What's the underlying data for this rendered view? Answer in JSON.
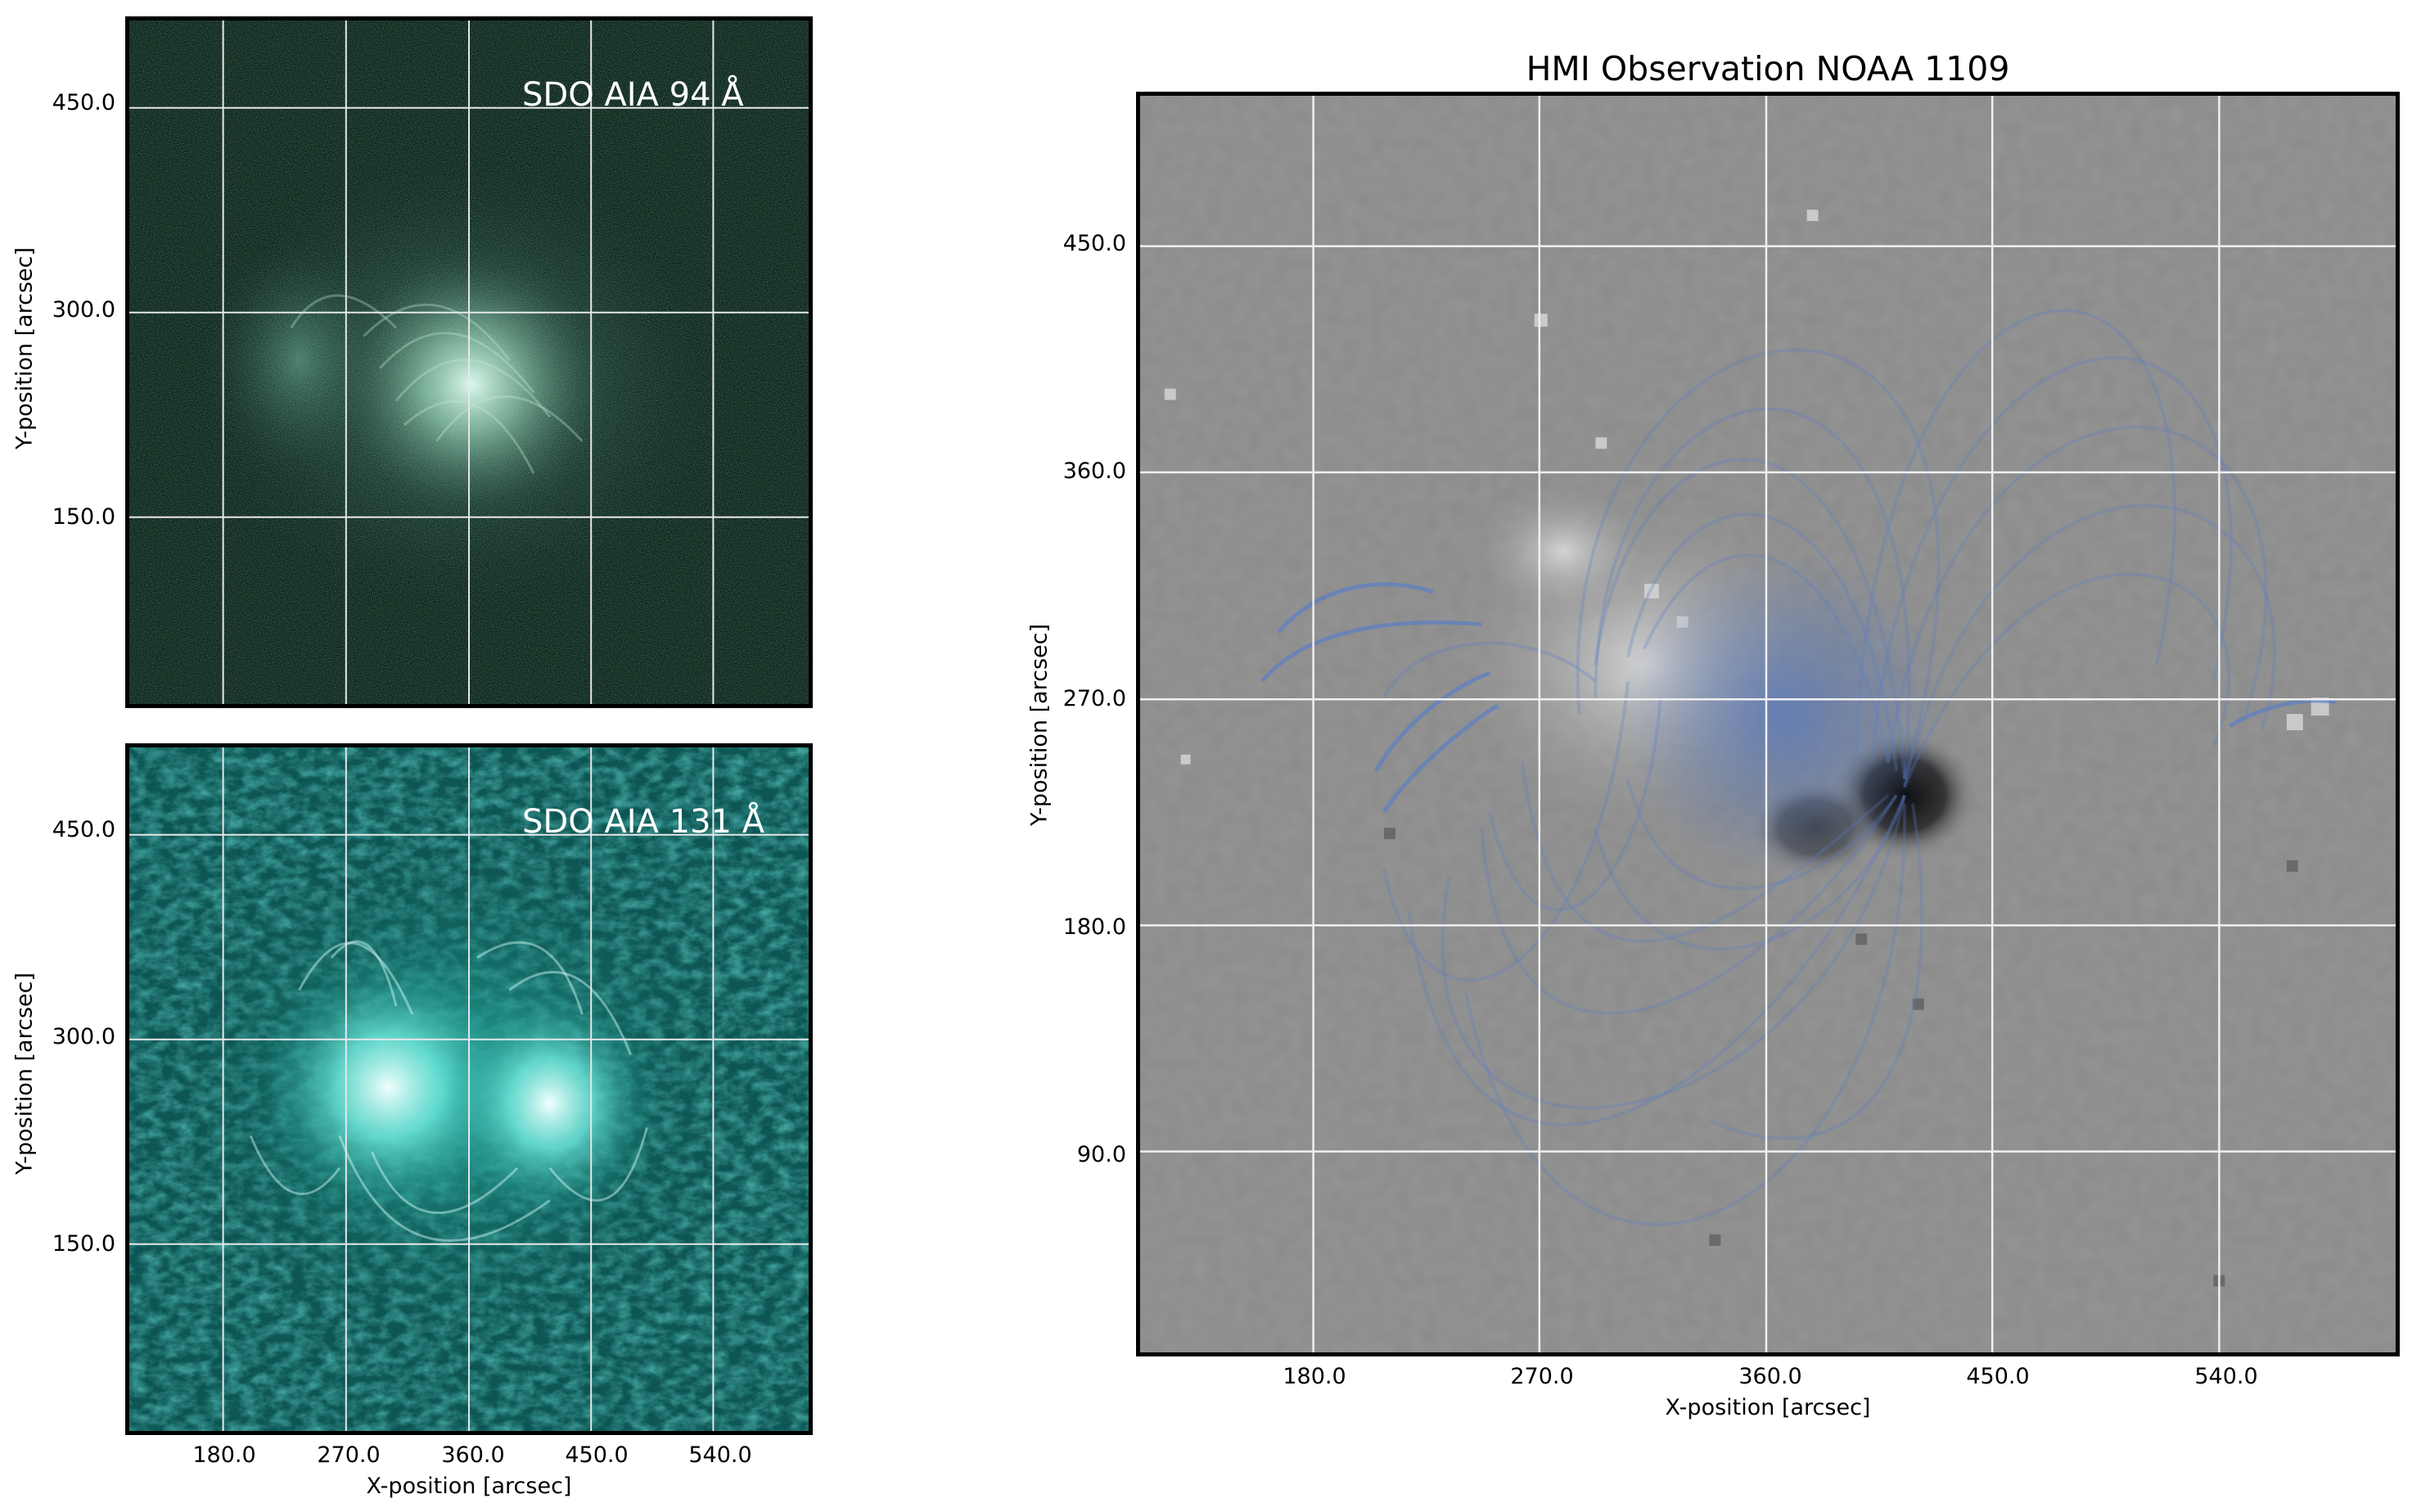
{
  "panels": {
    "aia94": {
      "label": "SDO AIA 94 Å",
      "ylabel": "Y-position [arcsec]",
      "yticks": [
        "450.0",
        "300.0",
        "150.0"
      ],
      "colors": {
        "dark": "#061a12",
        "mid": "#1f4f3d",
        "bright": "#b9e8d6"
      }
    },
    "aia131": {
      "label": "SDO AIA 131 Å",
      "ylabel": "Y-position [arcsec]",
      "yticks": [
        "450.0",
        "300.0",
        "150.0"
      ],
      "xticks": [
        "180.0",
        "270.0",
        "360.0",
        "450.0",
        "540.0"
      ],
      "xlabel": "X-position [arcsec]",
      "colors": {
        "dark": "#083a3a",
        "mid": "#17867f",
        "bright": "#d8fffb"
      }
    },
    "hmi": {
      "title": "HMI Observation NOAA 1109",
      "ylabel": "Y-position [arcsec]",
      "xlabel": "X-position [arcsec]",
      "yticks": [
        "450.0",
        "360.0",
        "270.0",
        "180.0",
        "90.0"
      ],
      "xticks": [
        "180.0",
        "270.0",
        "360.0",
        "450.0",
        "540.0"
      ],
      "colors": {
        "background": "#8c8c8c",
        "field_lines": "#5b7fc4",
        "sunspot": "#111111"
      }
    }
  }
}
